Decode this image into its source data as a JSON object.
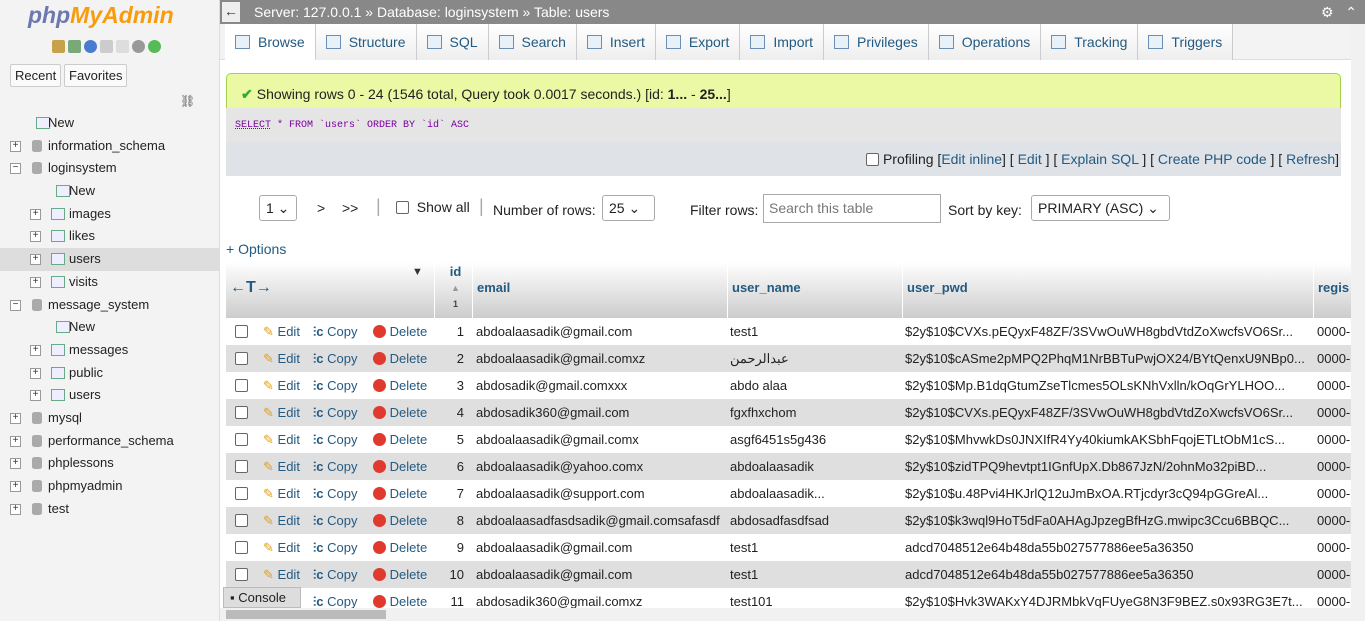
{
  "logo": {
    "text_a": "php",
    "text_b": "MyAdmin"
  },
  "sidebar": {
    "recent": "Recent",
    "favorites": "Favorites",
    "tree": [
      {
        "label": "New",
        "level": 0,
        "kind": "new"
      },
      {
        "label": "information_schema",
        "level": 0,
        "kind": "db"
      },
      {
        "label": "loginsystem",
        "level": 0,
        "kind": "db",
        "open": true
      },
      {
        "label": "New",
        "level": 1,
        "kind": "new"
      },
      {
        "label": "images",
        "level": 1,
        "kind": "table"
      },
      {
        "label": "likes",
        "level": 1,
        "kind": "table"
      },
      {
        "label": "users",
        "level": 1,
        "kind": "table",
        "selected": true
      },
      {
        "label": "visits",
        "level": 1,
        "kind": "table"
      },
      {
        "label": "message_system",
        "level": 0,
        "kind": "db",
        "open": true
      },
      {
        "label": "New",
        "level": 1,
        "kind": "new"
      },
      {
        "label": "messages",
        "level": 1,
        "kind": "table"
      },
      {
        "label": "public",
        "level": 1,
        "kind": "table"
      },
      {
        "label": "users",
        "level": 1,
        "kind": "table"
      },
      {
        "label": "mysql",
        "level": 0,
        "kind": "db"
      },
      {
        "label": "performance_schema",
        "level": 0,
        "kind": "db"
      },
      {
        "label": "phplessons",
        "level": 0,
        "kind": "db"
      },
      {
        "label": "phpmyadmin",
        "level": 0,
        "kind": "db"
      },
      {
        "label": "test",
        "level": 0,
        "kind": "db"
      }
    ]
  },
  "breadcrumb": {
    "server": "Server: 127.0.0.1",
    "database": "Database: loginsystem",
    "table": "Table: users",
    "sep": "»"
  },
  "tabs": [
    "Browse",
    "Structure",
    "SQL",
    "Search",
    "Insert",
    "Export",
    "Import",
    "Privileges",
    "Operations",
    "Tracking",
    "Triggers"
  ],
  "message": {
    "text": "Showing rows 0 - 24 (1546 total, Query took 0.0017 seconds.) [id: ",
    "b1": "1...",
    "mid": " - ",
    "b2": "25...",
    "end": "]"
  },
  "sql": {
    "select": "SELECT",
    "rest": " * FROM `users` ORDER BY `id` ASC"
  },
  "profiling": {
    "label": "Profiling",
    "links": [
      "Edit inline",
      "Edit",
      "Explain SQL",
      "Create PHP code",
      "Refresh"
    ]
  },
  "nav": {
    "page": "1",
    "next": ">",
    "last": ">>",
    "show_all": "Show all",
    "rows_label": "Number of rows:",
    "rows_value": "25",
    "filter_label": "Filter rows:",
    "filter_placeholder": "Search this table",
    "sort_label": "Sort by key:",
    "sort_value": "PRIMARY (ASC)"
  },
  "options": "+ Options",
  "table": {
    "columns": [
      "id",
      "email",
      "user_name",
      "user_pwd",
      "regis"
    ],
    "sort_order": "1",
    "actions": {
      "edit": "Edit",
      "copy": "Copy",
      "delete": "Delete"
    },
    "rows": [
      [
        "1",
        "abdoalaasadik@gmail.com",
        "test1",
        "$2y$10$CVXs.pEQyxF48ZF/3SVwOuWH8gbdVtdZoXwcfsVO6Sr...",
        "0000-"
      ],
      [
        "2",
        "abdoalaasadik@gmail.comxz",
        "عبدالرحمن",
        "$2y$10$cASme2pMPQ2PhqM1NrBBTuPwjOX24/BYtQenxU9NBp0...",
        "0000-"
      ],
      [
        "3",
        "abdosadik@gmail.comxxx",
        "abdo alaa",
        "$2y$10$Mp.B1dqGtumZseTlcmes5OLsKNhVxlln/kOqGrYLHOO...",
        "0000-"
      ],
      [
        "4",
        "abdosadik360@gmail.com",
        "fgxfhxchom",
        "$2y$10$CVXs.pEQyxF48ZF/3SVwOuWH8gbdVtdZoXwcfsVO6Sr...",
        "0000-"
      ],
      [
        "5",
        "abdoalaasadik@gmail.comx",
        "asgf6451s5g436",
        "$2y$10$MhvwkDs0JNXIfR4Yy40kiumkAKSbhFqojETLtObM1cS...",
        "0000-"
      ],
      [
        "6",
        "abdoalaasadik@yahoo.comx",
        "abdoalaasadik",
        "$2y$10$zidTPQ9hevtpt1IGnfUpX.Db867JzN/2ohnMo32piBD...",
        "0000-"
      ],
      [
        "7",
        "abdoalaasadik@support.com",
        "abdoalaasadik...",
        "$2y$10$u.48Pvi4HKJrlQ12uJmBxOA.RTjcdyr3cQ94pGGreAl...",
        "0000-"
      ],
      [
        "8",
        "abdoalaasadfasdsadik@gmail.comsafasdf",
        "abdosadfasdfsad",
        "$2y$10$k3wql9HoT5dFa0AHAgJpzegBfHzG.mwipc3Ccu6BBQC...",
        "0000-"
      ],
      [
        "9",
        "abdoalaasadik@gmail.com",
        "test1",
        "adcd7048512e64b48da55b027577886ee5a36350",
        "0000-"
      ],
      [
        "10",
        "abdoalaasadik@gmail.com",
        "test1",
        "adcd7048512e64b48da55b027577886ee5a36350",
        "0000-"
      ],
      [
        "11",
        "abdosadik360@gmail.comxz",
        "test101",
        "$2y$10$Hvk3WAKxY4DJRMbkVqFUyeG8N3F9BEZ.s0x93RG3E7t...",
        "0000-"
      ]
    ]
  },
  "console": "Console",
  "colors": {
    "link": "#235a81",
    "success_bg": "#ebf8a4",
    "topbar": "#888888",
    "row_alt": "#dfdfdf"
  }
}
